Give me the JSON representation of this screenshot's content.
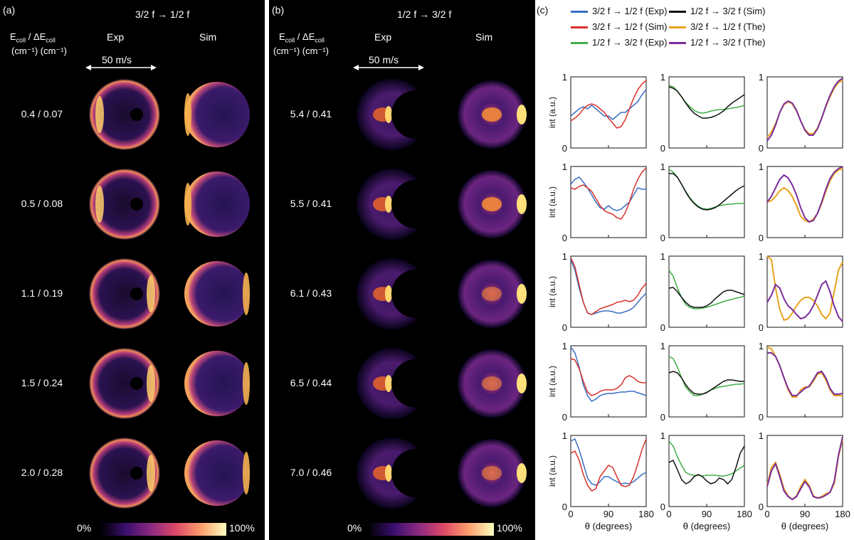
{
  "panel_a": {
    "tag": "(a)",
    "transition": "3/2 f → 1/2 f",
    "col_header_ecoll": "E",
    "col_header_sub1": "coll",
    "col_header_sep": " / ΔE",
    "col_header_sub2": "coll",
    "units": "(cm⁻¹)  (cm⁻¹)",
    "exp_label": "Exp",
    "sim_label": "Sim",
    "scale_bar": "50 m/s",
    "rows": [
      "0.4 / 0.07",
      "0.5 / 0.08",
      "1.1 / 0.19",
      "1.5 / 0.24",
      "2.0 / 0.28"
    ],
    "cbar_min": "0%",
    "cbar_max": "100%"
  },
  "panel_b": {
    "tag": "(b)",
    "transition": "1/2 f → 3/2 f",
    "col_header_ecoll": "E",
    "col_header_sub1": "coll",
    "col_header_sep": " / ΔE",
    "col_header_sub2": "coll",
    "units": "(cm⁻¹)  (cm⁻¹)",
    "exp_label": "Exp",
    "sim_label": "Sim",
    "scale_bar": "50 m/s",
    "rows": [
      "5.4 / 0.41",
      "5.5 / 0.41",
      "6.1 / 0.43",
      "6.5 / 0.44",
      "7.0 / 0.46"
    ],
    "cbar_min": "0%",
    "cbar_max": "100%"
  },
  "panel_c": {
    "tag": "(c)",
    "legend": [
      {
        "label": "3/2 f → 1/2 f (Exp)",
        "color": "#3a6fc4"
      },
      {
        "label": "1/2 f → 3/2 f (Sim)",
        "color": "#111111"
      },
      {
        "label": "3/2 f → 1/2 f (Sim)",
        "color": "#d8322a"
      },
      {
        "label": "3/2 f → 1/2 f (The)",
        "color": "#e8a21c"
      },
      {
        "label": "1/2 f → 3/2 f (Exp)",
        "color": "#3fae48"
      },
      {
        "label": "1/2 f → 3/2 f (The)",
        "color": "#7b2d9a"
      }
    ],
    "ylabel": "int (a.u.)",
    "xlabel": "θ (degrees)",
    "xticks": [
      "0",
      "90",
      "180"
    ],
    "yticks": [
      "0",
      "1"
    ]
  },
  "chart_data": {
    "type": "line",
    "x": [
      0,
      10,
      20,
      30,
      40,
      50,
      60,
      70,
      80,
      90,
      100,
      110,
      120,
      130,
      140,
      150,
      160,
      170,
      180
    ],
    "xlim": [
      0,
      180
    ],
    "ylim": [
      0,
      1
    ],
    "rows": [
      {
        "col1": {
          "exp": [
            0.45,
            0.5,
            0.55,
            0.58,
            0.55,
            0.6,
            0.55,
            0.5,
            0.45,
            0.45,
            0.4,
            0.45,
            0.5,
            0.5,
            0.55,
            0.6,
            0.65,
            0.75,
            0.82
          ],
          "sim": [
            0.38,
            0.42,
            0.47,
            0.55,
            0.6,
            0.62,
            0.6,
            0.55,
            0.5,
            0.42,
            0.35,
            0.28,
            0.3,
            0.4,
            0.55,
            0.7,
            0.82,
            0.9,
            0.95
          ]
        },
        "col2": {
          "exp": [
            0.88,
            0.86,
            0.8,
            0.72,
            0.64,
            0.58,
            0.53,
            0.5,
            0.49,
            0.5,
            0.52,
            0.53,
            0.54,
            0.54,
            0.55,
            0.56,
            0.57,
            0.58,
            0.6
          ],
          "sim": [
            0.86,
            0.84,
            0.8,
            0.72,
            0.63,
            0.55,
            0.49,
            0.45,
            0.42,
            0.42,
            0.43,
            0.45,
            0.48,
            0.52,
            0.58,
            0.63,
            0.67,
            0.71,
            0.75
          ]
        },
        "col3": {
          "the": [
            0.15,
            0.22,
            0.34,
            0.5,
            0.61,
            0.65,
            0.62,
            0.52,
            0.38,
            0.26,
            0.2,
            0.2,
            0.28,
            0.42,
            0.58,
            0.72,
            0.84,
            0.92,
            0.95
          ],
          "thsim": [
            0.1,
            0.18,
            0.32,
            0.5,
            0.62,
            0.66,
            0.63,
            0.53,
            0.38,
            0.25,
            0.18,
            0.18,
            0.27,
            0.42,
            0.59,
            0.74,
            0.86,
            0.94,
            0.98
          ]
        }
      },
      {
        "col1": {
          "exp": [
            0.75,
            0.82,
            0.85,
            0.78,
            0.7,
            0.6,
            0.5,
            0.42,
            0.4,
            0.45,
            0.4,
            0.38,
            0.4,
            0.45,
            0.5,
            0.6,
            0.7,
            0.68,
            0.68
          ],
          "sim": [
            0.7,
            0.68,
            0.72,
            0.74,
            0.7,
            0.65,
            0.55,
            0.45,
            0.38,
            0.35,
            0.33,
            0.28,
            0.26,
            0.35,
            0.5,
            0.68,
            0.82,
            0.92,
            0.98
          ]
        },
        "col2": {
          "exp": [
            0.96,
            0.92,
            0.85,
            0.75,
            0.65,
            0.56,
            0.49,
            0.44,
            0.41,
            0.4,
            0.41,
            0.43,
            0.45,
            0.46,
            0.47,
            0.47,
            0.48,
            0.48,
            0.48
          ],
          "sim": [
            0.9,
            0.9,
            0.85,
            0.75,
            0.64,
            0.55,
            0.48,
            0.43,
            0.4,
            0.39,
            0.4,
            0.42,
            0.46,
            0.51,
            0.56,
            0.61,
            0.66,
            0.7,
            0.73
          ]
        },
        "col3": {
          "the": [
            0.5,
            0.52,
            0.58,
            0.66,
            0.7,
            0.66,
            0.58,
            0.45,
            0.3,
            0.24,
            0.22,
            0.26,
            0.34,
            0.48,
            0.65,
            0.8,
            0.9,
            0.95,
            0.97
          ],
          "thsim": [
            0.5,
            0.58,
            0.7,
            0.82,
            0.88,
            0.84,
            0.74,
            0.6,
            0.42,
            0.28,
            0.22,
            0.24,
            0.34,
            0.5,
            0.68,
            0.83,
            0.92,
            0.97,
            1.0
          ]
        }
      },
      {
        "col1": {
          "exp": [
            0.95,
            0.8,
            0.55,
            0.35,
            0.2,
            0.18,
            0.2,
            0.22,
            0.23,
            0.23,
            0.22,
            0.2,
            0.2,
            0.22,
            0.24,
            0.28,
            0.35,
            0.42,
            0.48
          ],
          "sim": [
            0.98,
            0.85,
            0.6,
            0.35,
            0.2,
            0.18,
            0.22,
            0.26,
            0.28,
            0.3,
            0.32,
            0.35,
            0.36,
            0.38,
            0.36,
            0.38,
            0.45,
            0.55,
            0.62
          ]
        },
        "col2": {
          "exp": [
            0.8,
            0.72,
            0.55,
            0.42,
            0.32,
            0.28,
            0.26,
            0.26,
            0.27,
            0.28,
            0.3,
            0.32,
            0.34,
            0.36,
            0.38,
            0.39,
            0.41,
            0.42,
            0.44
          ],
          "sim": [
            0.55,
            0.56,
            0.5,
            0.42,
            0.35,
            0.3,
            0.28,
            0.28,
            0.28,
            0.3,
            0.34,
            0.4,
            0.45,
            0.5,
            0.52,
            0.52,
            0.5,
            0.48,
            0.46
          ]
        },
        "col3": {
          "the": [
            1.0,
            0.95,
            0.55,
            0.25,
            0.1,
            0.12,
            0.2,
            0.3,
            0.38,
            0.42,
            0.42,
            0.38,
            0.3,
            0.18,
            0.12,
            0.2,
            0.5,
            0.8,
            0.92
          ],
          "thsim": [
            0.35,
            0.45,
            0.6,
            0.55,
            0.4,
            0.3,
            0.25,
            0.18,
            0.12,
            0.14,
            0.2,
            0.3,
            0.45,
            0.6,
            0.65,
            0.5,
            0.3,
            0.15,
            0.08
          ]
        }
      },
      {
        "col1": {
          "exp": [
            0.98,
            0.9,
            0.7,
            0.45,
            0.3,
            0.22,
            0.25,
            0.3,
            0.32,
            0.33,
            0.33,
            0.34,
            0.35,
            0.35,
            0.36,
            0.36,
            0.34,
            0.32,
            0.3
          ],
          "sim": [
            0.82,
            0.8,
            0.68,
            0.5,
            0.35,
            0.3,
            0.32,
            0.36,
            0.38,
            0.38,
            0.38,
            0.4,
            0.45,
            0.55,
            0.58,
            0.55,
            0.5,
            0.48,
            0.48
          ]
        },
        "col2": {
          "exp": [
            0.85,
            0.82,
            0.7,
            0.55,
            0.42,
            0.35,
            0.3,
            0.3,
            0.32,
            0.35,
            0.38,
            0.4,
            0.42,
            0.43,
            0.44,
            0.45,
            0.46,
            0.46,
            0.47
          ],
          "sim": [
            0.62,
            0.64,
            0.62,
            0.55,
            0.45,
            0.38,
            0.33,
            0.32,
            0.32,
            0.34,
            0.38,
            0.42,
            0.46,
            0.5,
            0.52,
            0.52,
            0.51,
            0.5,
            0.5
          ]
        },
        "col3": {
          "the": [
            0.98,
            0.96,
            0.85,
            0.72,
            0.55,
            0.38,
            0.28,
            0.28,
            0.38,
            0.42,
            0.42,
            0.5,
            0.6,
            0.62,
            0.52,
            0.38,
            0.3,
            0.3,
            0.3
          ],
          "thsim": [
            0.9,
            0.9,
            0.85,
            0.72,
            0.55,
            0.4,
            0.3,
            0.3,
            0.35,
            0.4,
            0.43,
            0.52,
            0.62,
            0.64,
            0.55,
            0.4,
            0.32,
            0.32,
            0.33
          ]
        }
      },
      {
        "col1": {
          "exp": [
            0.92,
            0.95,
            0.8,
            0.6,
            0.4,
            0.32,
            0.3,
            0.35,
            0.42,
            0.42,
            0.38,
            0.35,
            0.32,
            0.33,
            0.32,
            0.35,
            0.4,
            0.45,
            0.48
          ],
          "sim": [
            0.75,
            0.78,
            0.65,
            0.45,
            0.3,
            0.22,
            0.25,
            0.42,
            0.5,
            0.58,
            0.55,
            0.42,
            0.3,
            0.28,
            0.3,
            0.42,
            0.6,
            0.8,
            0.95
          ]
        },
        "col2": {
          "exp": [
            0.92,
            0.85,
            0.7,
            0.58,
            0.48,
            0.45,
            0.44,
            0.44,
            0.43,
            0.44,
            0.44,
            0.44,
            0.43,
            0.43,
            0.44,
            0.46,
            0.5,
            0.54,
            0.58
          ],
          "sim": [
            0.62,
            0.65,
            0.52,
            0.38,
            0.32,
            0.35,
            0.42,
            0.45,
            0.42,
            0.36,
            0.32,
            0.34,
            0.4,
            0.38,
            0.32,
            0.38,
            0.55,
            0.75,
            0.85
          ]
        },
        "col3": {
          "the": [
            0.3,
            0.55,
            0.62,
            0.45,
            0.25,
            0.15,
            0.1,
            0.15,
            0.28,
            0.38,
            0.3,
            0.15,
            0.12,
            0.14,
            0.18,
            0.2,
            0.32,
            0.7,
            0.95
          ],
          "thsim": [
            0.28,
            0.5,
            0.6,
            0.42,
            0.22,
            0.14,
            0.1,
            0.14,
            0.25,
            0.35,
            0.28,
            0.14,
            0.12,
            0.13,
            0.16,
            0.2,
            0.35,
            0.72,
            0.98
          ]
        }
      }
    ]
  }
}
